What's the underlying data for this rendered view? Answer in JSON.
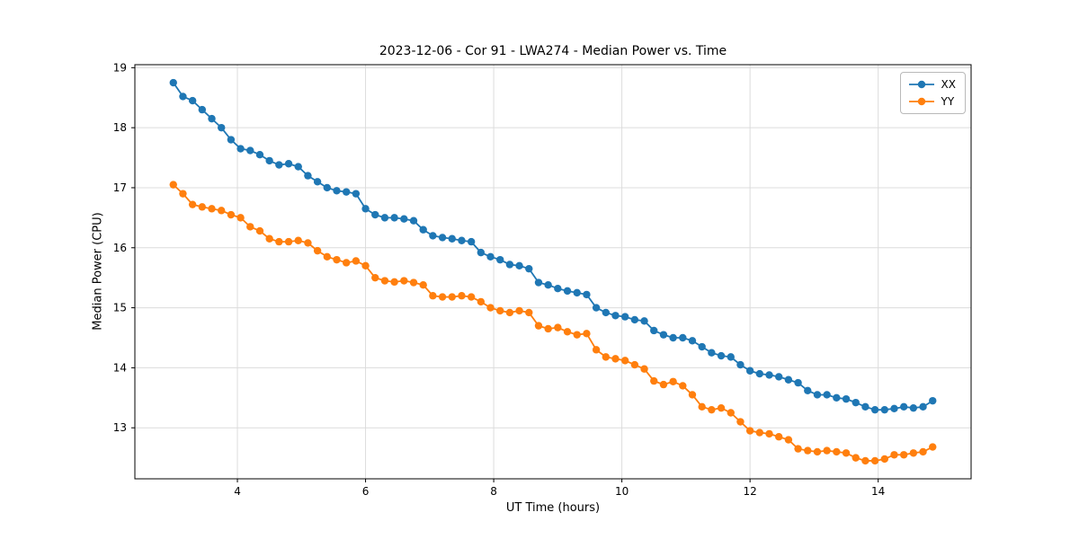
{
  "chart_data": {
    "type": "line",
    "title": "2023-12-06 - Cor 91 - LWA274 - Median Power vs. Time",
    "xlabel": "UT Time (hours)",
    "ylabel": "Median Power (CPU)",
    "xlim": [
      2.4,
      15.45
    ],
    "ylim": [
      12.15,
      19.05
    ],
    "xticks": [
      4,
      6,
      8,
      10,
      12,
      14
    ],
    "yticks": [
      13,
      14,
      15,
      16,
      17,
      18,
      19
    ],
    "grid": true,
    "grid_color": "#dcdcdc",
    "spine_color": "#000000",
    "legend_position": "upper right",
    "x": [
      3.0,
      3.15,
      3.3,
      3.45,
      3.6,
      3.75,
      3.9,
      4.05,
      4.2,
      4.35,
      4.5,
      4.65,
      4.8,
      4.95,
      5.1,
      5.25,
      5.4,
      5.55,
      5.7,
      5.85,
      6.0,
      6.15,
      6.3,
      6.45,
      6.6,
      6.75,
      6.9,
      7.05,
      7.2,
      7.35,
      7.5,
      7.65,
      7.8,
      7.95,
      8.1,
      8.25,
      8.4,
      8.55,
      8.7,
      8.85,
      9.0,
      9.15,
      9.3,
      9.45,
      9.6,
      9.75,
      9.9,
      10.05,
      10.2,
      10.35,
      10.5,
      10.65,
      10.8,
      10.95,
      11.1,
      11.25,
      11.4,
      11.55,
      11.7,
      11.85,
      12.0,
      12.15,
      12.3,
      12.45,
      12.6,
      12.75,
      12.9,
      13.05,
      13.2,
      13.35,
      13.5,
      13.65,
      13.8,
      13.95,
      14.1,
      14.25,
      14.4,
      14.55,
      14.7,
      14.85
    ],
    "series": [
      {
        "name": "XX",
        "color": "#1f77b4",
        "values": [
          18.75,
          18.52,
          18.45,
          18.3,
          18.15,
          18.0,
          17.8,
          17.65,
          17.62,
          17.55,
          17.45,
          17.38,
          17.4,
          17.35,
          17.2,
          17.1,
          17.0,
          16.95,
          16.93,
          16.9,
          16.65,
          16.55,
          16.5,
          16.5,
          16.48,
          16.45,
          16.3,
          16.2,
          16.17,
          16.15,
          16.12,
          16.1,
          15.92,
          15.85,
          15.8,
          15.72,
          15.7,
          15.65,
          15.42,
          15.38,
          15.32,
          15.28,
          15.25,
          15.22,
          15.0,
          14.92,
          14.87,
          14.85,
          14.8,
          14.78,
          14.62,
          14.55,
          14.5,
          14.5,
          14.45,
          14.35,
          14.25,
          14.2,
          14.18,
          14.05,
          13.95,
          13.9,
          13.88,
          13.85,
          13.8,
          13.75,
          13.62,
          13.55,
          13.55,
          13.5,
          13.48,
          13.42,
          13.35,
          13.3,
          13.3,
          13.32,
          13.35,
          13.33,
          13.35,
          13.45
        ]
      },
      {
        "name": "YY",
        "color": "#ff7f0e",
        "values": [
          17.05,
          16.9,
          16.72,
          16.68,
          16.65,
          16.62,
          16.55,
          16.5,
          16.35,
          16.28,
          16.15,
          16.1,
          16.1,
          16.12,
          16.08,
          15.95,
          15.85,
          15.8,
          15.75,
          15.78,
          15.7,
          15.5,
          15.45,
          15.43,
          15.45,
          15.42,
          15.38,
          15.2,
          15.18,
          15.18,
          15.2,
          15.18,
          15.1,
          15.0,
          14.95,
          14.92,
          14.95,
          14.92,
          14.7,
          14.65,
          14.67,
          14.6,
          14.55,
          14.57,
          14.3,
          14.18,
          14.15,
          14.12,
          14.05,
          13.98,
          13.78,
          13.72,
          13.77,
          13.7,
          13.55,
          13.35,
          13.3,
          13.33,
          13.25,
          13.1,
          12.95,
          12.92,
          12.9,
          12.85,
          12.8,
          12.65,
          12.62,
          12.6,
          12.62,
          12.6,
          12.58,
          12.5,
          12.45,
          12.45,
          12.48,
          12.55,
          12.55,
          12.58,
          12.6,
          12.68
        ]
      }
    ]
  }
}
